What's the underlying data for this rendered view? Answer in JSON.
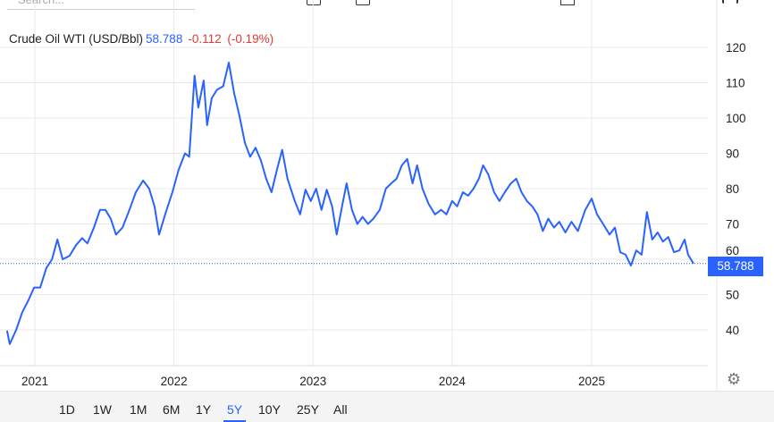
{
  "search": {
    "placeholder": "Search..."
  },
  "header": {
    "name": "Crude Oil WTI (USD/Bbl)",
    "price": "58.788",
    "change": "-0.112",
    "change_pct": "(-0.19%)"
  },
  "colors": {
    "line": "#2962ff",
    "up": "#2962ff",
    "down": "#e53935",
    "grid": "#e9e9e9"
  },
  "price_label": "58.788",
  "ranges": [
    {
      "label": "1D"
    },
    {
      "label": "1W"
    },
    {
      "label": "1M"
    },
    {
      "label": "6M"
    },
    {
      "label": "1Y"
    },
    {
      "label": "5Y",
      "active": true
    },
    {
      "label": "10Y"
    },
    {
      "label": "25Y"
    },
    {
      "label": "All"
    }
  ],
  "icons": {
    "settings": "gear-icon"
  },
  "chart_data": {
    "type": "line",
    "title": "Crude Oil WTI (USD/Bbl)",
    "ylim": [
      30,
      125
    ],
    "yticks": [
      40,
      50,
      60,
      70,
      80,
      90,
      100,
      110,
      120
    ],
    "xticks": [
      "2021",
      "2022",
      "2023",
      "2024",
      "2025"
    ],
    "grid": true,
    "last_value": 58.788,
    "series": [
      {
        "points": [
          [
            "2020-10-20",
            39.8
          ],
          [
            "2020-10-27",
            36
          ],
          [
            "2020-11-13",
            40
          ],
          [
            "2020-11-29",
            45
          ],
          [
            "2020-12-16",
            48.6
          ],
          [
            "2020-12-30",
            52
          ],
          [
            "2021-01-15",
            52
          ],
          [
            "2021-01-31",
            57.5
          ],
          [
            "2021-02-15",
            60
          ],
          [
            "2021-03-01",
            65.6
          ],
          [
            "2021-03-15",
            60
          ],
          [
            "2021-04-02",
            61
          ],
          [
            "2021-04-19",
            64
          ],
          [
            "2021-05-05",
            66
          ],
          [
            "2021-05-19",
            64.5
          ],
          [
            "2021-06-05",
            69
          ],
          [
            "2021-06-21",
            74
          ],
          [
            "2021-07-05",
            74
          ],
          [
            "2021-07-19",
            71.5
          ],
          [
            "2021-08-02",
            67
          ],
          [
            "2021-08-19",
            69
          ],
          [
            "2021-09-06",
            74
          ],
          [
            "2021-09-23",
            79
          ],
          [
            "2021-10-12",
            82.3
          ],
          [
            "2021-10-28",
            80
          ],
          [
            "2021-11-11",
            75
          ],
          [
            "2021-11-23",
            67
          ],
          [
            "2021-12-09",
            72.7
          ],
          [
            "2021-12-28",
            79
          ],
          [
            "2022-01-13",
            85.3
          ],
          [
            "2022-01-30",
            90
          ],
          [
            "2022-02-10",
            89
          ],
          [
            "2022-02-24",
            112
          ],
          [
            "2022-03-06",
            103
          ],
          [
            "2022-03-20",
            110.6
          ],
          [
            "2022-03-29",
            98
          ],
          [
            "2022-04-10",
            105.6
          ],
          [
            "2022-04-24",
            108
          ],
          [
            "2022-05-10",
            109
          ],
          [
            "2022-05-25",
            115.7
          ],
          [
            "2022-06-08",
            107
          ],
          [
            "2022-06-22",
            100.5
          ],
          [
            "2022-07-06",
            93
          ],
          [
            "2022-07-20",
            89
          ],
          [
            "2022-08-03",
            91.6
          ],
          [
            "2022-08-17",
            88
          ],
          [
            "2022-08-31",
            82.8
          ],
          [
            "2022-09-14",
            79
          ],
          [
            "2022-09-28",
            85.3
          ],
          [
            "2022-10-12",
            91
          ],
          [
            "2022-10-26",
            82.8
          ],
          [
            "2022-11-14",
            76.5
          ],
          [
            "2022-11-28",
            72.7
          ],
          [
            "2022-12-12",
            79.7
          ],
          [
            "2022-12-26",
            76.5
          ],
          [
            "2023-01-09",
            80
          ],
          [
            "2023-01-23",
            74
          ],
          [
            "2023-02-06",
            79.7
          ],
          [
            "2023-02-20",
            75
          ],
          [
            "2023-03-04",
            67
          ],
          [
            "2023-03-18",
            75
          ],
          [
            "2023-03-30",
            81.5
          ],
          [
            "2023-04-13",
            74
          ],
          [
            "2023-04-27",
            70
          ],
          [
            "2023-05-11",
            72
          ],
          [
            "2023-05-25",
            70
          ],
          [
            "2023-06-08",
            71.5
          ],
          [
            "2023-06-25",
            74
          ],
          [
            "2023-07-11",
            80
          ],
          [
            "2023-07-25",
            81.5
          ],
          [
            "2023-08-08",
            82.8
          ],
          [
            "2023-08-22",
            86.6
          ],
          [
            "2023-09-05",
            88.4
          ],
          [
            "2023-09-19",
            81.5
          ],
          [
            "2023-10-01",
            86.6
          ],
          [
            "2023-10-15",
            80
          ],
          [
            "2023-10-31",
            75.7
          ],
          [
            "2023-11-17",
            72.7
          ],
          [
            "2023-12-03",
            74
          ],
          [
            "2023-12-17",
            72.7
          ],
          [
            "2024-01-01",
            76.5
          ],
          [
            "2024-01-14",
            75
          ],
          [
            "2024-01-29",
            79
          ],
          [
            "2024-02-12",
            78
          ],
          [
            "2024-02-26",
            80
          ],
          [
            "2024-03-11",
            82.8
          ],
          [
            "2024-03-22",
            86.6
          ],
          [
            "2024-04-05",
            84
          ],
          [
            "2024-04-20",
            79
          ],
          [
            "2024-05-04",
            76.5
          ],
          [
            "2024-05-18",
            79
          ],
          [
            "2024-06-03",
            81.5
          ],
          [
            "2024-06-17",
            82.8
          ],
          [
            "2024-07-01",
            79
          ],
          [
            "2024-07-15",
            76.5
          ],
          [
            "2024-07-29",
            75
          ],
          [
            "2024-08-12",
            72.7
          ],
          [
            "2024-08-26",
            68
          ],
          [
            "2024-09-09",
            71.5
          ],
          [
            "2024-09-24",
            69
          ],
          [
            "2024-10-08",
            70.6
          ],
          [
            "2024-10-24",
            67.6
          ],
          [
            "2024-11-09",
            70.6
          ],
          [
            "2024-11-26",
            68
          ],
          [
            "2024-12-15",
            74
          ],
          [
            "2025-01-01",
            77.2
          ],
          [
            "2025-01-15",
            72.7
          ],
          [
            "2025-01-31",
            70
          ],
          [
            "2025-02-17",
            67
          ],
          [
            "2025-03-03",
            69
          ],
          [
            "2025-03-17",
            62
          ],
          [
            "2025-03-31",
            61.3
          ],
          [
            "2025-04-14",
            58.2
          ],
          [
            "2025-04-28",
            62.5
          ],
          [
            "2025-05-12",
            61.3
          ],
          [
            "2025-05-26",
            73.4
          ],
          [
            "2025-06-09",
            65.6
          ],
          [
            "2025-06-23",
            67.6
          ],
          [
            "2025-07-07",
            65
          ],
          [
            "2025-07-21",
            66.3
          ],
          [
            "2025-08-05",
            62
          ],
          [
            "2025-08-19",
            62.5
          ],
          [
            "2025-09-02",
            65.6
          ],
          [
            "2025-09-11",
            61.3
          ],
          [
            "2025-09-25",
            58.788
          ]
        ]
      }
    ]
  }
}
